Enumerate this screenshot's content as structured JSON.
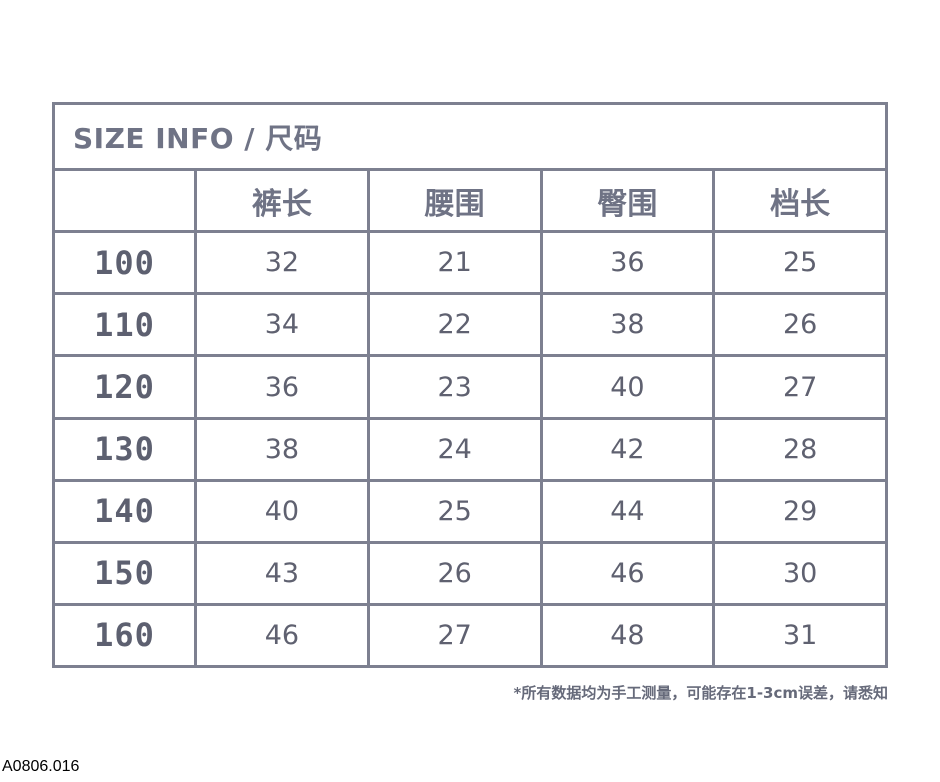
{
  "table": {
    "title": "SIZE INFO / 尺码",
    "headers": [
      "",
      "裤长",
      "腰围",
      "臀围",
      "档长"
    ],
    "rows": [
      {
        "size": "100",
        "values": [
          "32",
          "21",
          "36",
          "25"
        ]
      },
      {
        "size": "110",
        "values": [
          "34",
          "22",
          "38",
          "26"
        ]
      },
      {
        "size": "120",
        "values": [
          "36",
          "23",
          "40",
          "27"
        ]
      },
      {
        "size": "130",
        "values": [
          "38",
          "24",
          "42",
          "28"
        ]
      },
      {
        "size": "140",
        "values": [
          "40",
          "25",
          "44",
          "29"
        ]
      },
      {
        "size": "150",
        "values": [
          "43",
          "26",
          "46",
          "30"
        ]
      },
      {
        "size": "160",
        "values": [
          "46",
          "27",
          "48",
          "31"
        ]
      }
    ]
  },
  "note": "*所有数据均为手工测量，可能存在1-3cm误差，请悉知",
  "product_code": "A0806.016",
  "colors": {
    "border": "#7d8090",
    "text": "#6f7385"
  }
}
